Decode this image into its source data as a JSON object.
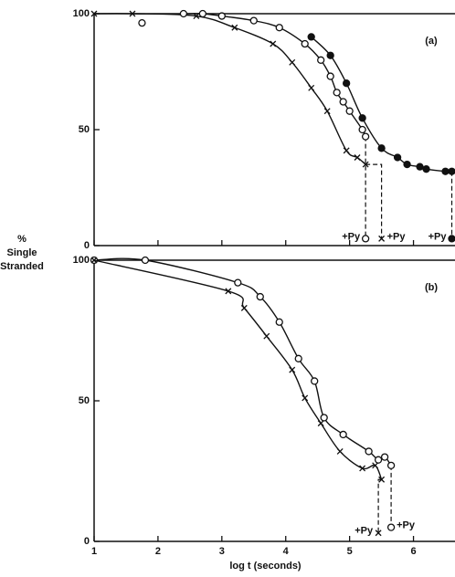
{
  "shared_ylabel": [
    "%",
    "Single",
    "Stranded"
  ],
  "chart_data": [
    {
      "type": "line",
      "panel_label": "(a)",
      "xlim": [
        1,
        6.65
      ],
      "ylim": [
        0,
        100
      ],
      "xticks": [
        1,
        2,
        3,
        4,
        5,
        6
      ],
      "yticks": [
        0,
        50,
        100
      ],
      "show_xtick_labels": false,
      "series": [
        {
          "marker": "cross",
          "color": "#111111",
          "line": true,
          "x": [
            1.0,
            1.6,
            2.6,
            3.2,
            3.8,
            4.1,
            4.4,
            4.65,
            4.95,
            5.12,
            5.25
          ],
          "values": [
            100,
            100,
            99,
            94,
            87,
            79,
            68,
            58,
            41,
            38,
            35
          ],
          "addition": {
            "label": "+Py",
            "x": 5.5,
            "y": 3,
            "label_side": "right"
          }
        },
        {
          "marker": "open",
          "color": "#111111",
          "line": true,
          "x": [
            2.4,
            2.7,
            3.0,
            3.5,
            3.9,
            4.3,
            4.55,
            4.7,
            4.8,
            4.9,
            5.0,
            5.2,
            5.25
          ],
          "values": [
            100,
            100,
            99,
            97,
            94,
            87,
            80,
            73,
            66,
            62,
            58,
            50,
            47
          ],
          "addition": {
            "label": "+Py",
            "x": 5.25,
            "y": 3,
            "label_side": "left"
          }
        },
        {
          "marker": "open",
          "color": "#111111",
          "line": false,
          "x": [
            1.75
          ],
          "values": [
            96
          ]
        },
        {
          "marker": "filled",
          "color": "#111111",
          "line": true,
          "x": [
            4.4,
            4.7,
            4.95,
            5.2,
            5.5,
            5.75,
            5.9,
            6.1,
            6.2,
            6.5,
            6.6
          ],
          "values": [
            90,
            82,
            70,
            55,
            42,
            38,
            35,
            34,
            33,
            32,
            32
          ],
          "addition": {
            "label": "+Py",
            "x": 6.6,
            "y": 3,
            "label_side": "left"
          }
        }
      ]
    },
    {
      "type": "line",
      "panel_label": "(b)",
      "xlabel": "log t (seconds)",
      "xlim": [
        1,
        6.65
      ],
      "ylim": [
        0,
        100
      ],
      "xticks": [
        1,
        2,
        3,
        4,
        5,
        6
      ],
      "yticks": [
        0,
        50,
        100
      ],
      "show_xtick_labels": true,
      "series": [
        {
          "marker": "open",
          "color": "#111111",
          "line": true,
          "x": [
            1.0,
            1.8,
            3.25,
            3.6,
            3.9,
            4.2,
            4.45,
            4.6,
            4.9,
            5.3,
            5.45,
            5.55,
            5.65
          ],
          "values": [
            100,
            100,
            92,
            87,
            78,
            65,
            57,
            44,
            38,
            32,
            29,
            30,
            27
          ],
          "addition": {
            "label": "+Py",
            "x": 5.65,
            "y": 5,
            "label_side": "right"
          }
        },
        {
          "marker": "cross",
          "color": "#111111",
          "line": true,
          "x": [
            1.0,
            3.1,
            3.35,
            3.7,
            4.1,
            4.3,
            4.55,
            4.85,
            5.2,
            5.4,
            5.5
          ],
          "values": [
            100,
            89,
            83,
            73,
            61,
            51,
            42,
            32,
            26,
            27,
            22
          ],
          "addition": {
            "label": "+Py",
            "x": 5.45,
            "y": 3,
            "label_side": "left"
          }
        }
      ]
    }
  ]
}
